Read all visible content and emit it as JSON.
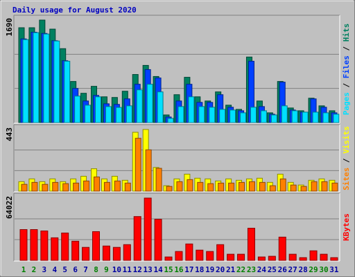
{
  "title": "Daily usage for August 2020",
  "chart_data": [
    {
      "type": "bar",
      "legend_separator": " / ",
      "series": [
        {
          "name": "Hits",
          "color": "#008060",
          "values": [
            1564,
            1564,
            1690,
            1541,
            1219,
            678,
            483,
            598,
            425,
            414,
            517,
            793,
            943,
            760,
            126,
            460,
            747,
            425,
            356,
            506,
            287,
            218,
            1081,
            356,
            161,
            678,
            241,
            195,
            402,
            276,
            195
          ]
        },
        {
          "name": "Files",
          "color": "#0040ff",
          "values": [
            1380,
            1490,
            1470,
            1350,
            1020,
            563,
            356,
            448,
            310,
            300,
            391,
            632,
            874,
            736,
            92,
            356,
            632,
            333,
            333,
            460,
            253,
            195,
            1012,
            264,
            138,
            667,
            207,
            172,
            391,
            253,
            161
          ]
        },
        {
          "name": "Pages",
          "color": "#00e0ff",
          "values": [
            1368,
            1483,
            1460,
            1345,
            1012,
            437,
            287,
            425,
            264,
            250,
            276,
            540,
            632,
            506,
            69,
            264,
            425,
            264,
            253,
            218,
            207,
            161,
            253,
            195,
            126,
            276,
            195,
            172,
            172,
            161,
            138
          ]
        }
      ],
      "ylim": [
        0,
        1690
      ],
      "yticks": [
        1690
      ]
    },
    {
      "type": "bar",
      "legend_separator": " / ",
      "series": [
        {
          "name": "Visits",
          "color": "#ffff00",
          "values": [
            68,
            88,
            68,
            88,
            68,
            88,
            107,
            161,
            88,
            107,
            78,
            423,
            443,
            170,
            39,
            88,
            122,
            93,
            88,
            73,
            88,
            78,
            88,
            93,
            63,
            122,
            63,
            44,
            78,
            88,
            78
          ]
        },
        {
          "name": "Sites",
          "color": "#ff8000",
          "values": [
            49,
            63,
            49,
            63,
            54,
            58,
            73,
            102,
            63,
            73,
            58,
            380,
            297,
            164,
            34,
            68,
            83,
            63,
            54,
            58,
            58,
            63,
            68,
            63,
            39,
            88,
            44,
            34,
            68,
            68,
            58
          ]
        }
      ],
      "ylim": [
        0,
        443
      ],
      "yticks": [
        443
      ]
    },
    {
      "type": "bar",
      "series": [
        {
          "name": "KBytes",
          "color": "#ff0000",
          "values": [
            31660,
            31660,
            30250,
            23210,
            28130,
            19700,
            13370,
            29550,
            14770,
            13370,
            16180,
            45030,
            64022,
            42210,
            3520,
            9150,
            16880,
            10550,
            9150,
            16180,
            6330,
            6330,
            33070,
            3520,
            4220,
            23920,
            6330,
            2810,
            9850,
            6330,
            2810
          ]
        }
      ],
      "ylim": [
        0,
        64022
      ],
      "yticks": [
        64022
      ],
      "categories": [
        "1",
        "2",
        "3",
        "4",
        "5",
        "6",
        "7",
        "8",
        "9",
        "10",
        "11",
        "12",
        "13",
        "14",
        "15",
        "16",
        "17",
        "18",
        "19",
        "20",
        "21",
        "22",
        "23",
        "24",
        "25",
        "26",
        "27",
        "28",
        "29",
        "30",
        "31"
      ],
      "category_colors": [
        "#008000",
        "#008000",
        "#0000a0",
        "#0000a0",
        "#0000a0",
        "#0000a0",
        "#0000a0",
        "#008000",
        "#008000",
        "#0000a0",
        "#0000a0",
        "#0000a0",
        "#0000a0",
        "#0000a0",
        "#008000",
        "#008000",
        "#0000a0",
        "#0000a0",
        "#0000a0",
        "#0000a0",
        "#0000a0",
        "#008000",
        "#008000",
        "#0000a0",
        "#0000a0",
        "#0000a0",
        "#0000a0",
        "#0000a0",
        "#008000",
        "#008000",
        "#0000a0"
      ]
    }
  ]
}
